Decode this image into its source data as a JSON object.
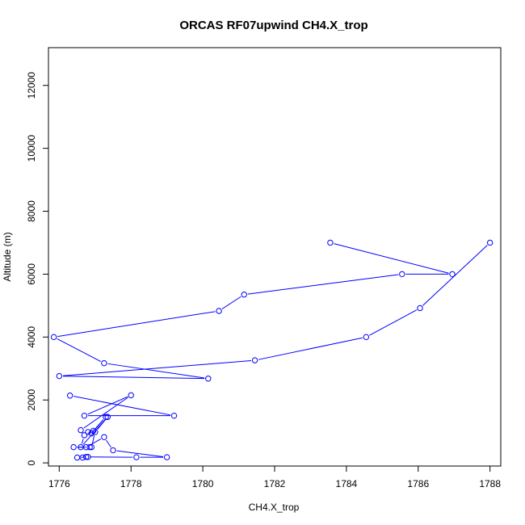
{
  "chart_data": {
    "type": "line",
    "title": "ORCAS RF07upwind CH4.X_trop",
    "xlabel": "CH4.X_trop",
    "ylabel": "Altitude (m)",
    "xlim": [
      1775.7,
      1788.3
    ],
    "ylim": [
      -100,
      13200
    ],
    "xticks": [
      1776,
      1778,
      1780,
      1782,
      1784,
      1786,
      1788
    ],
    "yticks": [
      0,
      2000,
      4000,
      6000,
      8000,
      10000,
      12000
    ],
    "grid": false,
    "legend": "none",
    "series": [
      {
        "color": "#0000ff",
        "marker": "open-circle",
        "x": [
          1783.55,
          1786.95,
          1785.55,
          1781.15,
          1780.45,
          1775.85,
          1777.25,
          1780.15,
          1776.0,
          1781.45,
          1784.55,
          1786.05,
          1788.0
        ],
        "y": [
          7000,
          6000,
          6000,
          5350,
          4830,
          4000,
          3170,
          2680,
          2760,
          3260,
          4000,
          4920,
          7000
        ]
      },
      {
        "color": "#0000ff",
        "marker": "open-circle",
        "x": [
          1776.3,
          1779.2,
          1776.7,
          1778.0,
          1776.6,
          1776.8,
          1776.9,
          1777.3,
          1776.95,
          1776.7,
          1776.6,
          1777.35,
          1777.0,
          1776.9,
          1776.85,
          1776.4,
          1776.75,
          1777.25,
          1777.5,
          1779.0,
          1778.15,
          1776.75,
          1776.8,
          1776.5,
          1776.65
        ],
        "y": [
          2140,
          1500,
          1500,
          2150,
          1040,
          980,
          940,
          1460,
          1020,
          880,
          500,
          1460,
          980,
          500,
          500,
          500,
          500,
          820,
          400,
          180,
          180,
          190,
          190,
          170,
          170
        ]
      }
    ]
  }
}
